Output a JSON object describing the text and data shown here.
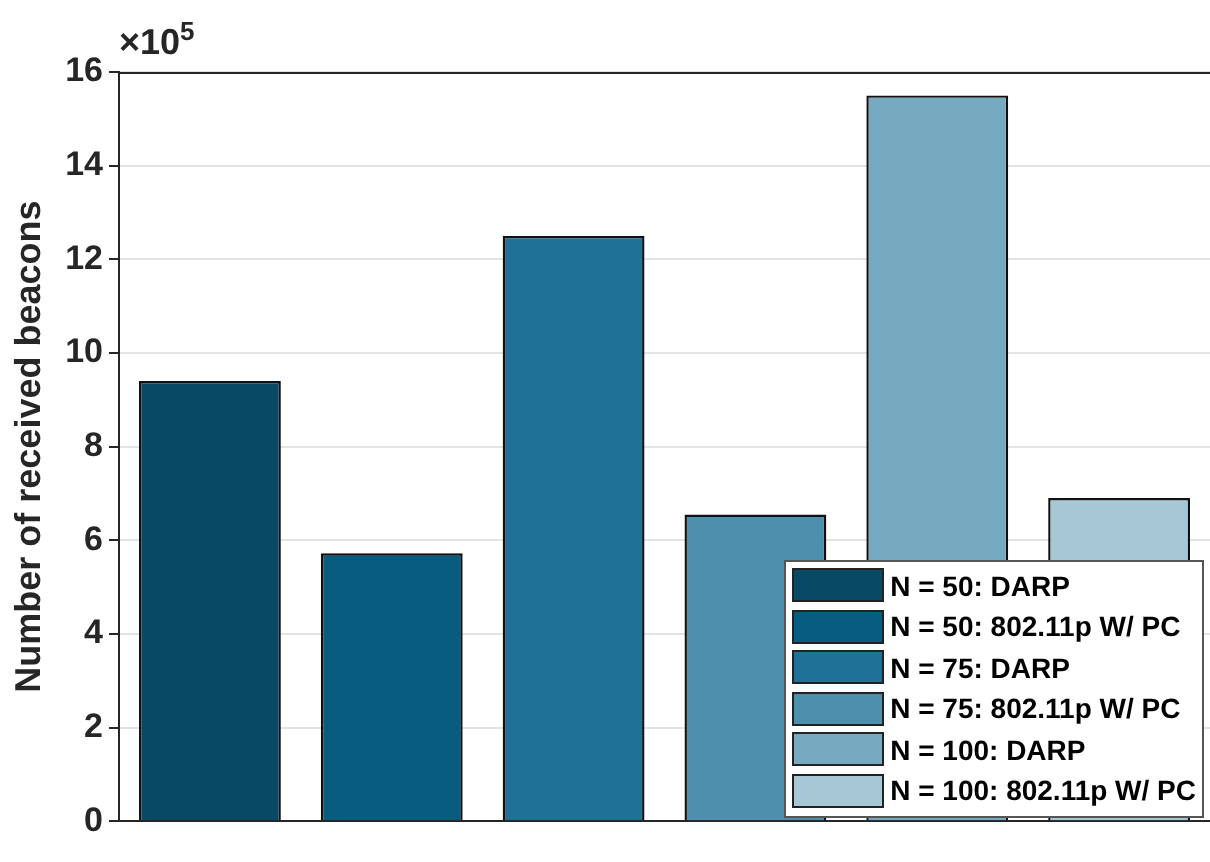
{
  "chart_data": {
    "type": "bar",
    "ylabel": "Number of received beacons",
    "annotations": [
      "×10$^{5}$"
    ],
    "categories": [
      null,
      null,
      null,
      null,
      null,
      null
    ],
    "ylim": [
      0,
      16
    ],
    "yticks": [
      0,
      2,
      4,
      6,
      8,
      10,
      12,
      14,
      16
    ],
    "grid": "y",
    "legend": "bottom right",
    "series": [
      {
        "name": "N = 50: DARP",
        "color": "#084a66",
        "values": [
          9.4,
          null,
          null,
          null,
          null,
          null
        ]
      },
      {
        "name": "N = 50: 802.11p W/ PC",
        "color": "#075c80",
        "values": [
          null,
          5.72,
          null,
          null,
          null,
          null
        ]
      },
      {
        "name": "N = 75: DARP",
        "color": "#1f7196",
        "values": [
          null,
          null,
          12.5,
          null,
          null,
          null
        ]
      },
      {
        "name": "N = 75: 802.11p W/ PC",
        "color": "#4d8fad",
        "values": [
          null,
          null,
          null,
          6.55,
          null,
          null
        ]
      },
      {
        "name": "N = 100: DARP",
        "color": "#76aac0",
        "values": [
          null,
          null,
          null,
          null,
          15.5,
          null
        ]
      },
      {
        "name": "N = 100: 802.11p W/ PC",
        "color": "#a6c8d6",
        "values": [
          null,
          null,
          null,
          null,
          null,
          6.9
        ]
      }
    ]
  }
}
